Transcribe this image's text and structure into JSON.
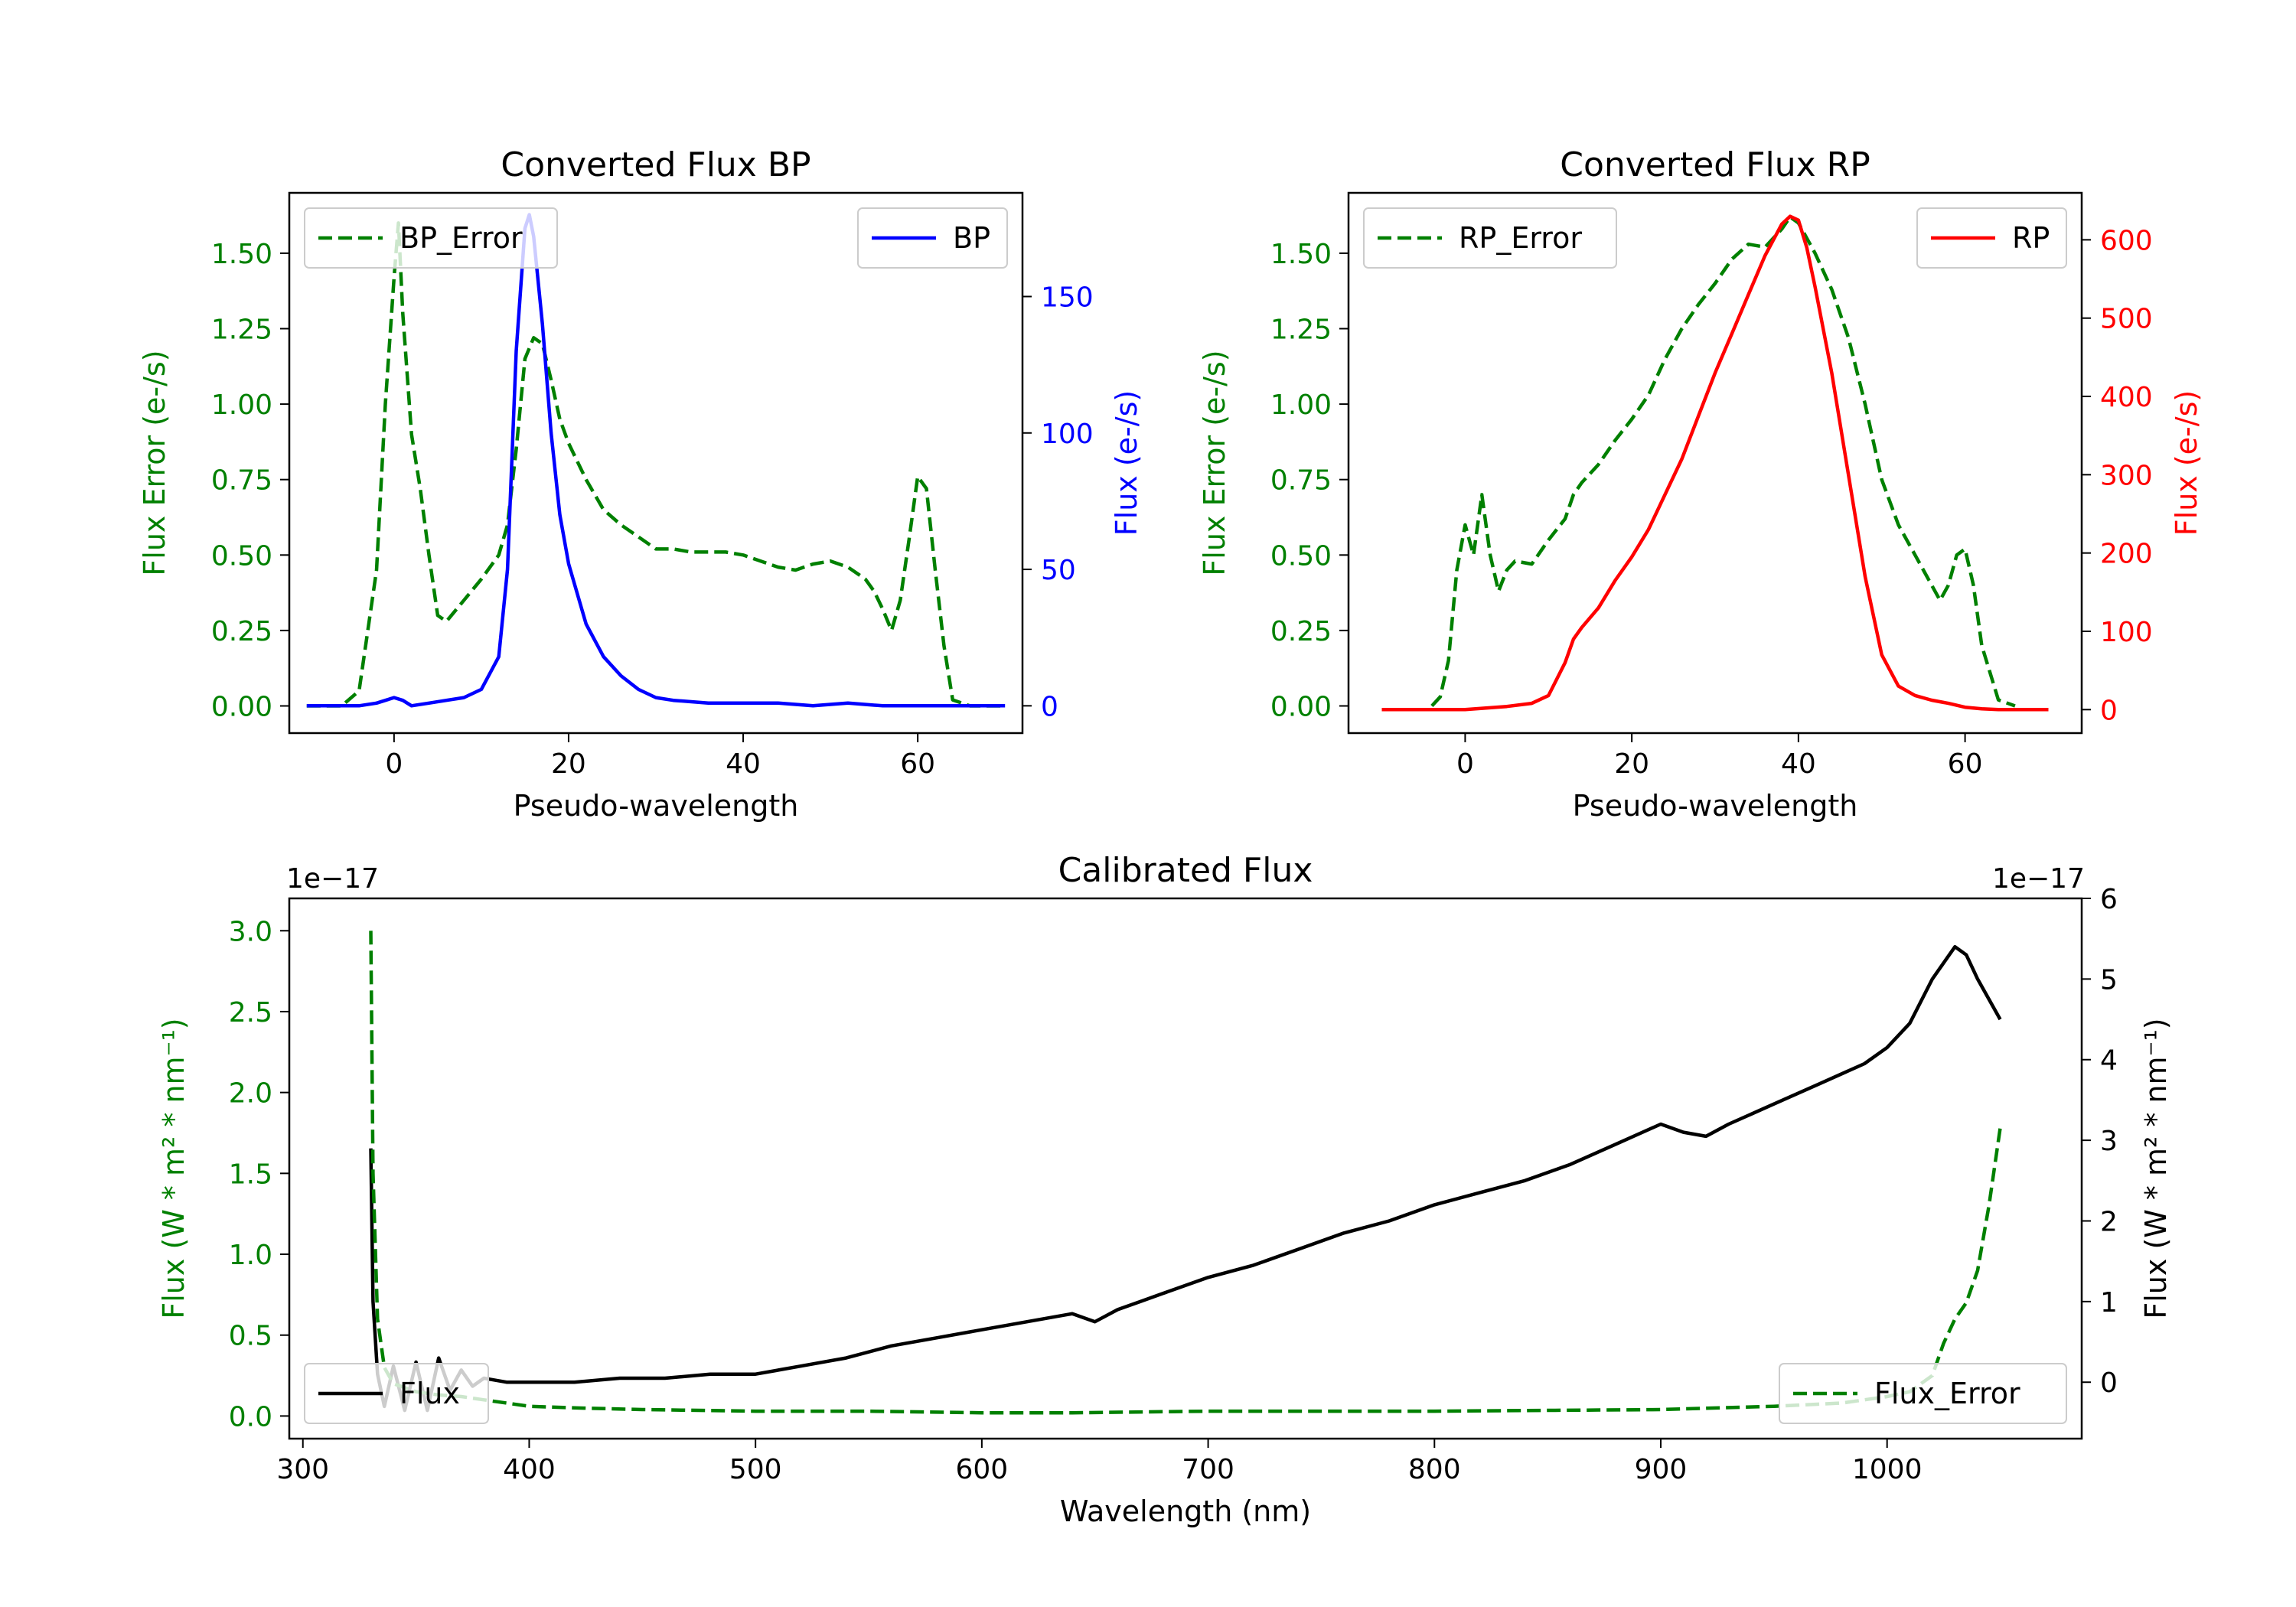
{
  "chart_data": [
    {
      "type": "line",
      "title": "Converted Flux BP",
      "xlabel": "Pseudo-wavelength",
      "ylabel_left": "Flux Error (e-/s)",
      "ylabel_right": "Flux (e-/s)",
      "xlim": [
        -12,
        72
      ],
      "ylim_left": [
        -0.09,
        1.7
      ],
      "ylim_right": [
        -10,
        188
      ],
      "xticks": [
        0,
        20,
        40,
        60
      ],
      "yticks_left": [
        "0.00",
        "0.25",
        "0.50",
        "0.75",
        "1.00",
        "1.25",
        "1.50"
      ],
      "yticks_right": [
        "0",
        "50",
        "100",
        "150"
      ],
      "series": [
        {
          "name": "BP_Error",
          "axis": "left",
          "color": "#008000",
          "style": "dashed",
          "legend": "top-left",
          "x": [
            -10,
            -6,
            -4,
            -2,
            -1,
            0,
            0.5,
            1,
            2,
            3,
            4,
            5,
            6,
            8,
            10,
            12,
            13,
            14,
            15,
            16,
            17,
            18,
            19,
            20,
            22,
            24,
            26,
            28,
            30,
            32,
            34,
            36,
            38,
            40,
            42,
            44,
            46,
            48,
            50,
            52,
            54,
            55,
            56,
            57,
            58,
            59,
            60,
            61,
            62,
            63,
            64,
            66,
            70
          ],
          "y": [
            0.0,
            0.0,
            0.05,
            0.45,
            1.0,
            1.42,
            1.6,
            1.3,
            0.9,
            0.72,
            0.5,
            0.3,
            0.28,
            0.35,
            0.42,
            0.5,
            0.6,
            0.85,
            1.15,
            1.22,
            1.2,
            1.08,
            0.95,
            0.87,
            0.75,
            0.65,
            0.6,
            0.56,
            0.52,
            0.52,
            0.51,
            0.51,
            0.51,
            0.5,
            0.48,
            0.46,
            0.45,
            0.47,
            0.48,
            0.46,
            0.42,
            0.38,
            0.32,
            0.25,
            0.35,
            0.55,
            0.76,
            0.72,
            0.45,
            0.2,
            0.02,
            0.0,
            0.0
          ]
        },
        {
          "name": "BP",
          "axis": "right",
          "color": "#0000ff",
          "style": "solid",
          "legend": "top-right",
          "x": [
            -10,
            -4,
            -2,
            0,
            1,
            2,
            4,
            6,
            8,
            10,
            12,
            13,
            14,
            15,
            15.5,
            16,
            17,
            18,
            19,
            20,
            22,
            24,
            26,
            28,
            30,
            32,
            36,
            40,
            44,
            48,
            52,
            56,
            60,
            64,
            70
          ],
          "y": [
            0,
            0,
            1,
            3,
            2,
            0,
            1,
            2,
            3,
            6,
            18,
            50,
            130,
            175,
            180,
            172,
            140,
            100,
            70,
            52,
            30,
            18,
            11,
            6,
            3,
            2,
            1,
            1,
            1,
            0,
            1,
            0,
            0,
            0,
            0
          ]
        }
      ]
    },
    {
      "type": "line",
      "title": "Converted Flux RP",
      "xlabel": "Pseudo-wavelength",
      "ylabel_left": "Flux Error (e-/s)",
      "ylabel_right": "Flux (e-/s)",
      "xlim": [
        -14,
        74
      ],
      "ylim_left": [
        -0.09,
        1.7
      ],
      "ylim_right": [
        -30,
        660
      ],
      "xticks": [
        0,
        20,
        40,
        60
      ],
      "yticks_left": [
        "0.00",
        "0.25",
        "0.50",
        "0.75",
        "1.00",
        "1.25",
        "1.50"
      ],
      "yticks_right": [
        "0",
        "100",
        "200",
        "300",
        "400",
        "500",
        "600"
      ],
      "series": [
        {
          "name": "RP_Error",
          "axis": "left",
          "color": "#008000",
          "style": "dashed",
          "legend": "top-left",
          "x": [
            -4,
            -3,
            -2,
            -1,
            0,
            1,
            2,
            3,
            4,
            5,
            6,
            8,
            10,
            12,
            13,
            14,
            16,
            18,
            20,
            22,
            24,
            26,
            28,
            30,
            32,
            34,
            36,
            38,
            39,
            40,
            42,
            44,
            46,
            48,
            50,
            52,
            54,
            56,
            57,
            58,
            59,
            60,
            61,
            62,
            64,
            66
          ],
          "y": [
            0.0,
            0.03,
            0.15,
            0.45,
            0.6,
            0.5,
            0.7,
            0.5,
            0.38,
            0.45,
            0.48,
            0.47,
            0.55,
            0.62,
            0.7,
            0.74,
            0.8,
            0.88,
            0.95,
            1.03,
            1.15,
            1.25,
            1.33,
            1.4,
            1.48,
            1.53,
            1.52,
            1.58,
            1.62,
            1.6,
            1.5,
            1.38,
            1.22,
            1.0,
            0.75,
            0.6,
            0.5,
            0.4,
            0.35,
            0.4,
            0.5,
            0.52,
            0.4,
            0.2,
            0.02,
            0.0
          ]
        },
        {
          "name": "RP",
          "axis": "right",
          "color": "#ff0000",
          "style": "solid",
          "legend": "top-right",
          "x": [
            -10,
            -5,
            0,
            5,
            8,
            10,
            12,
            13,
            14,
            16,
            18,
            20,
            22,
            24,
            26,
            28,
            30,
            32,
            34,
            36,
            38,
            39,
            40,
            41,
            42,
            44,
            46,
            48,
            50,
            52,
            54,
            56,
            58,
            60,
            62,
            64,
            70
          ],
          "y": [
            0,
            0,
            0,
            4,
            8,
            18,
            60,
            90,
            105,
            130,
            165,
            195,
            230,
            275,
            320,
            375,
            430,
            480,
            530,
            580,
            620,
            630,
            625,
            590,
            540,
            430,
            300,
            170,
            70,
            30,
            18,
            12,
            8,
            3,
            1,
            0,
            0
          ]
        }
      ]
    },
    {
      "type": "line",
      "title": "Calibrated Flux",
      "xlabel": "Wavelength (nm)",
      "ylabel_left": "Flux (W * m² * nm⁻¹)",
      "ylabel_right": "Flux (W * m² * nm⁻¹)",
      "offset_left": "1e−17",
      "offset_right": "1e−17",
      "xlim": [
        294,
        1086
      ],
      "ylim_left": [
        -0.14,
        3.2
      ],
      "ylim_right": [
        -0.7,
        6.0
      ],
      "xticks": [
        300,
        400,
        500,
        600,
        700,
        800,
        900,
        1000
      ],
      "yticks_left": [
        "0.0",
        "0.5",
        "1.0",
        "1.5",
        "2.0",
        "2.5",
        "3.0"
      ],
      "yticks_right": [
        "0",
        "1",
        "2",
        "3",
        "4",
        "5",
        "6"
      ],
      "series": [
        {
          "name": "Flux",
          "axis": "right",
          "color": "#000000",
          "style": "solid",
          "legend": "bottom-left",
          "x": [
            330,
            331,
            333,
            336,
            340,
            345,
            350,
            355,
            360,
            365,
            370,
            375,
            380,
            390,
            400,
            420,
            440,
            460,
            480,
            500,
            520,
            540,
            560,
            580,
            600,
            620,
            640,
            650,
            660,
            670,
            680,
            700,
            720,
            740,
            760,
            780,
            800,
            820,
            840,
            860,
            880,
            900,
            910,
            920,
            930,
            950,
            970,
            990,
            1000,
            1010,
            1020,
            1030,
            1035,
            1040,
            1050
          ],
          "y": [
            2.9,
            1.0,
            0.1,
            -0.3,
            0.2,
            -0.35,
            0.25,
            -0.35,
            0.3,
            -0.1,
            0.15,
            -0.05,
            0.05,
            0.0,
            0.0,
            0.0,
            0.05,
            0.05,
            0.1,
            0.1,
            0.2,
            0.3,
            0.45,
            0.55,
            0.65,
            0.75,
            0.85,
            0.75,
            0.9,
            1.0,
            1.1,
            1.3,
            1.45,
            1.65,
            1.85,
            2.0,
            2.2,
            2.35,
            2.5,
            2.7,
            2.95,
            3.2,
            3.1,
            3.05,
            3.2,
            3.45,
            3.7,
            3.95,
            4.15,
            4.45,
            5.0,
            5.4,
            5.3,
            5.0,
            4.5
          ]
        },
        {
          "name": "Flux_Error",
          "axis": "left",
          "color": "#008000",
          "style": "dashed",
          "legend": "bottom-right",
          "x": [
            330,
            331,
            333,
            336,
            340,
            350,
            360,
            370,
            380,
            390,
            400,
            420,
            450,
            500,
            550,
            600,
            640,
            700,
            800,
            900,
            950,
            980,
            1000,
            1010,
            1020,
            1025,
            1030,
            1035,
            1040,
            1045,
            1050
          ],
          "y": [
            3.0,
            1.5,
            0.6,
            0.3,
            0.2,
            0.15,
            0.13,
            0.12,
            0.1,
            0.08,
            0.06,
            0.05,
            0.04,
            0.03,
            0.03,
            0.02,
            0.02,
            0.03,
            0.03,
            0.04,
            0.06,
            0.08,
            0.12,
            0.15,
            0.25,
            0.45,
            0.6,
            0.7,
            0.9,
            1.3,
            1.78
          ]
        }
      ]
    }
  ]
}
